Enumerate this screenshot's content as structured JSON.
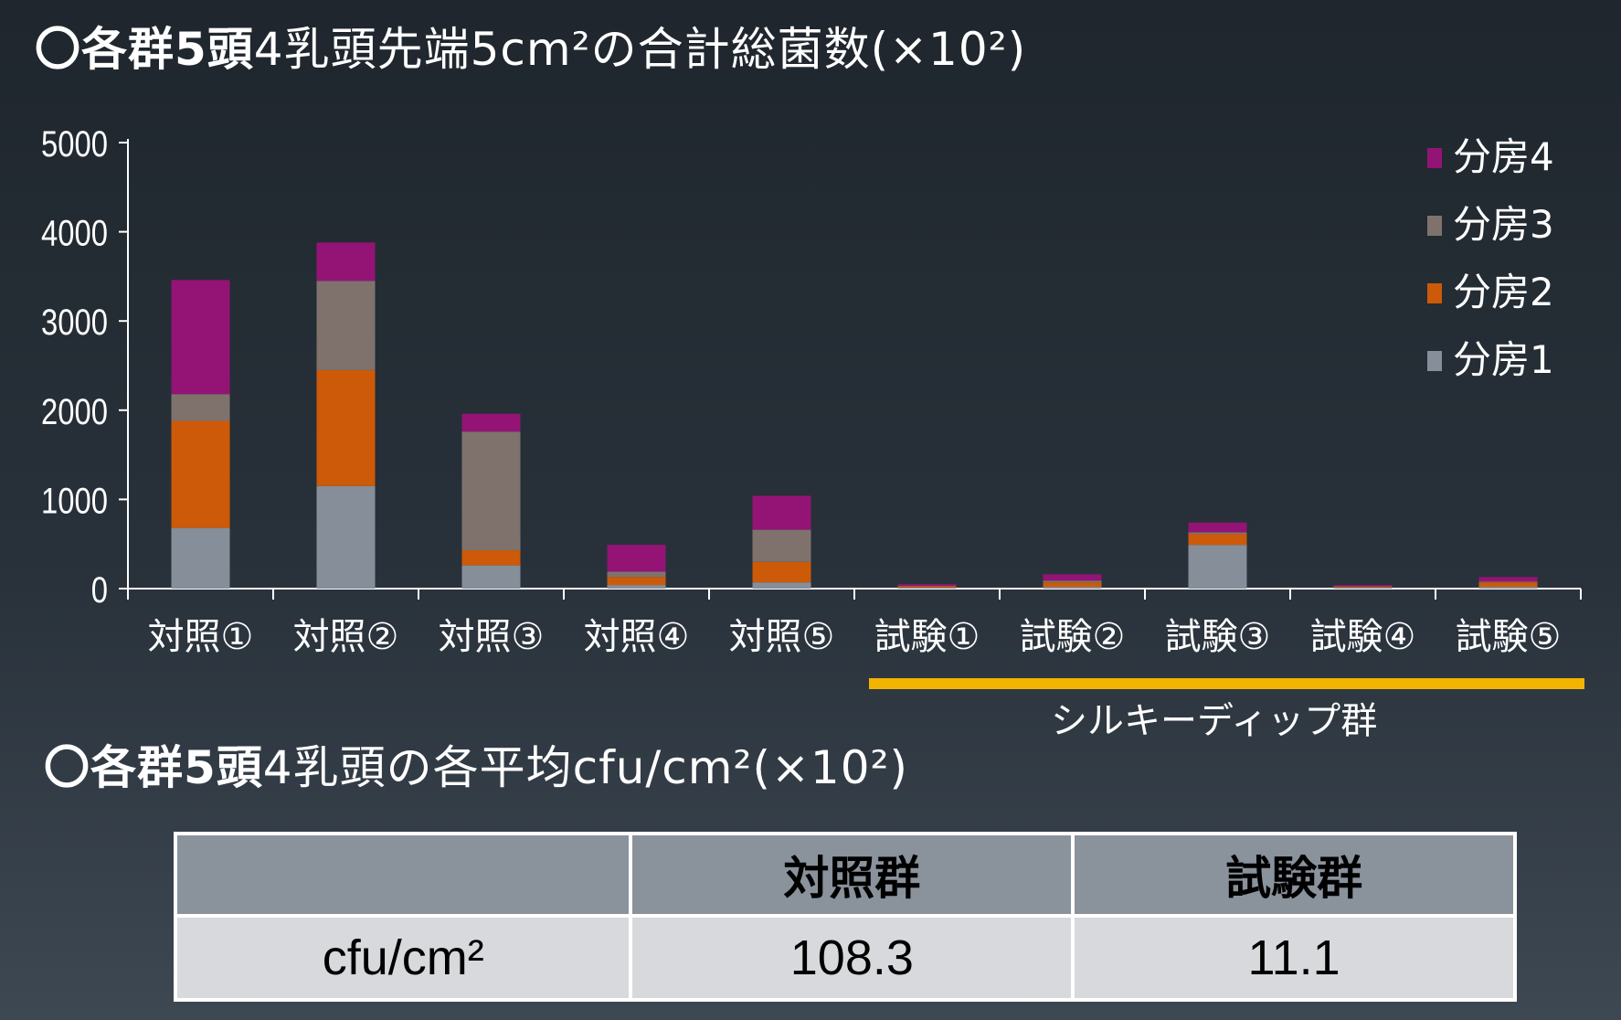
{
  "title_main": {
    "bold": "〇各群5頭",
    "rest": "4乳頭先端5cm²の合計総菌数(×10²)"
  },
  "title_sub": {
    "bold": "〇各群5頭",
    "rest": "4乳頭の各平均cfu/cm²(×10²)"
  },
  "chart_data": {
    "type": "bar",
    "stacked": true,
    "categories": [
      "対照①",
      "対照②",
      "対照③",
      "対照④",
      "対照⑤",
      "試験①",
      "試験②",
      "試験③",
      "試験④",
      "試験⑤"
    ],
    "series": [
      {
        "name": "分房1",
        "color": "#858e99",
        "values": [
          680,
          1150,
          260,
          40,
          70,
          10,
          20,
          490,
          10,
          20
        ]
      },
      {
        "name": "分房2",
        "color": "#cc5a08",
        "values": [
          1200,
          1300,
          170,
          90,
          230,
          15,
          50,
          120,
          10,
          50
        ]
      },
      {
        "name": "分房3",
        "color": "#7f726d",
        "values": [
          300,
          1000,
          1330,
          60,
          360,
          5,
          20,
          20,
          5,
          10
        ]
      },
      {
        "name": "分房4",
        "color": "#931475",
        "values": [
          1280,
          430,
          200,
          300,
          380,
          20,
          70,
          110,
          15,
          50
        ]
      }
    ],
    "ylim": [
      0,
      5000
    ],
    "yticks": [
      0,
      1000,
      2000,
      3000,
      4000,
      5000
    ],
    "legend_position": "top-right",
    "legend_order": [
      "分房4",
      "分房3",
      "分房2",
      "分房1"
    ],
    "grid": false,
    "group_annotation": {
      "label": "シルキーディップ群",
      "from_category": "試験①",
      "to_category": "試験⑤",
      "color": "#f3b400"
    }
  },
  "table": {
    "headers": [
      "",
      "対照群",
      "試験群"
    ],
    "rows": [
      [
        "cfu/cm²",
        "108.3",
        "11.1"
      ]
    ]
  }
}
